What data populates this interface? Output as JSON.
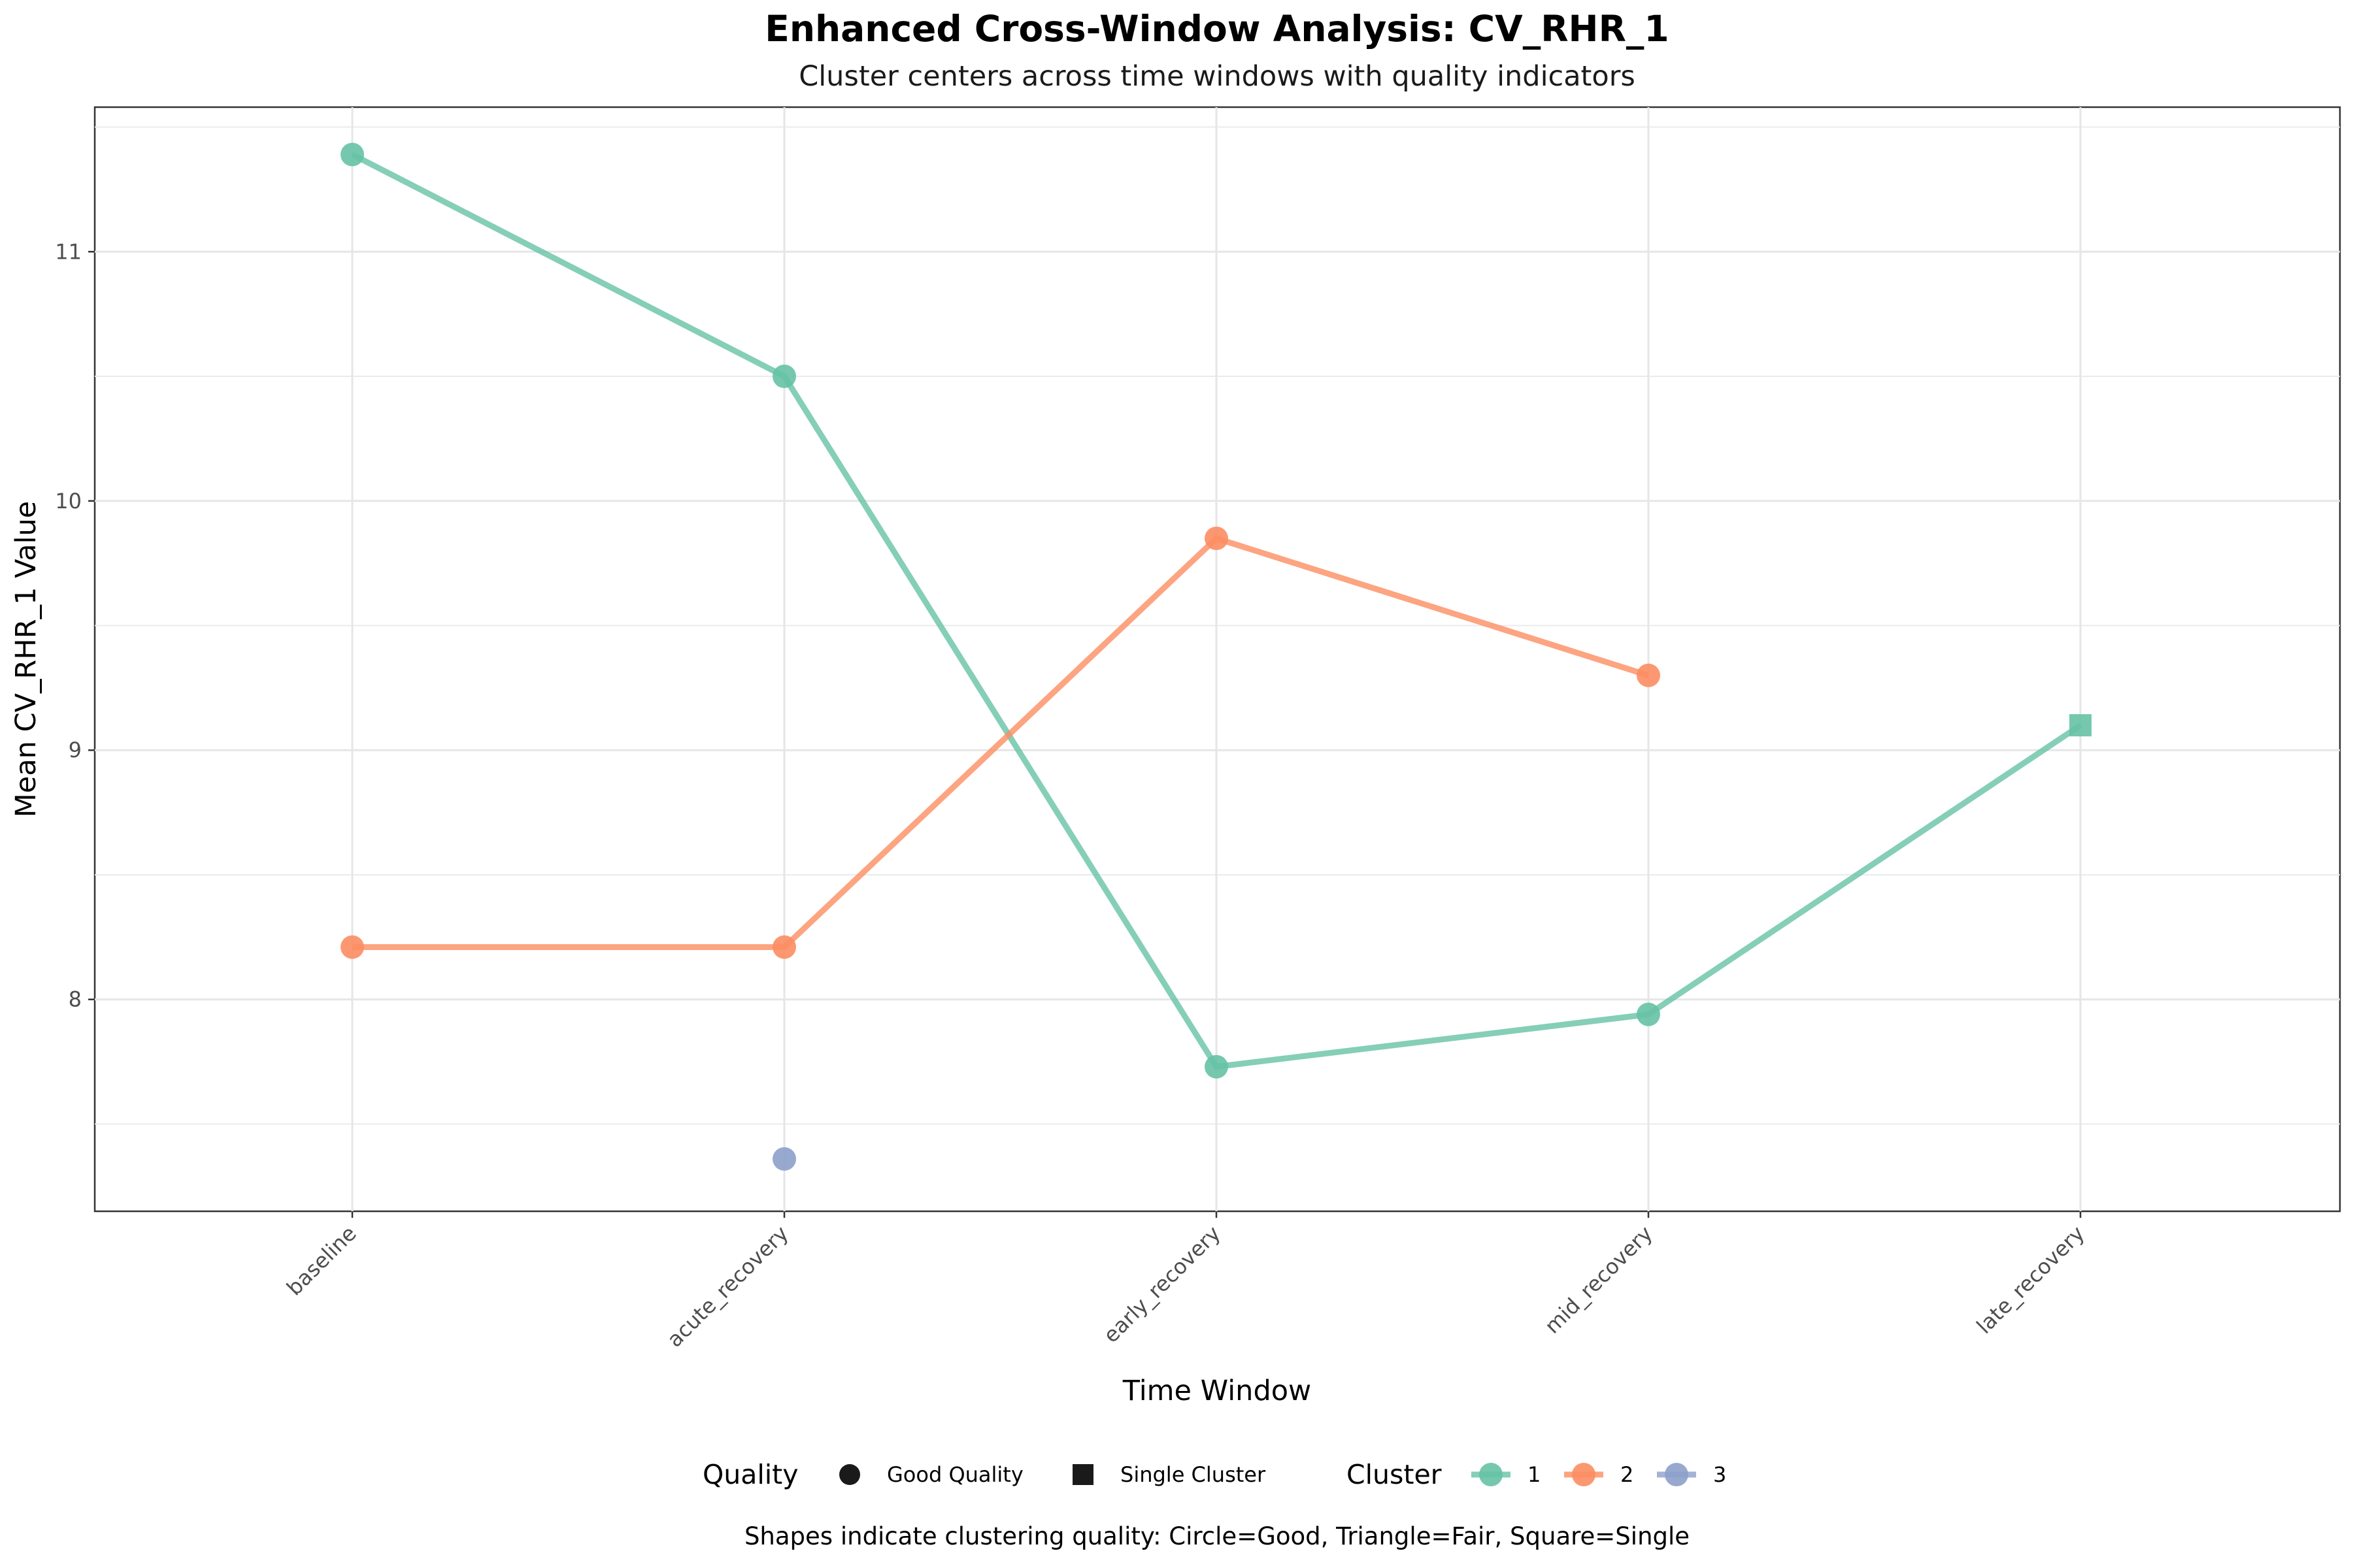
{
  "chart_data": {
    "type": "line",
    "title": "Enhanced Cross-Window Analysis: CV_RHR_1",
    "subtitle": "Cluster centers across time windows with quality indicators",
    "xlabel": "Time Window",
    "ylabel": "Mean CV_RHR_1 Value",
    "categories": [
      "baseline",
      "acute_recovery",
      "early_recovery",
      "mid_recovery",
      "late_recovery"
    ],
    "ylim": [
      7.15,
      11.58
    ],
    "yticks": [
      8,
      9,
      10,
      11
    ],
    "grid": true,
    "legend_position": "bottom",
    "series": [
      {
        "name": "1",
        "color": "#66c2a5",
        "points": [
          {
            "x": "baseline",
            "y": 11.39,
            "quality": "Good Quality"
          },
          {
            "x": "acute_recovery",
            "y": 10.5,
            "quality": "Good Quality"
          },
          {
            "x": "early_recovery",
            "y": 7.73,
            "quality": "Good Quality"
          },
          {
            "x": "mid_recovery",
            "y": 7.94,
            "quality": "Good Quality"
          },
          {
            "x": "late_recovery",
            "y": 9.1,
            "quality": "Single Cluster"
          }
        ]
      },
      {
        "name": "2",
        "color": "#fc8d62",
        "points": [
          {
            "x": "baseline",
            "y": 8.21,
            "quality": "Good Quality"
          },
          {
            "x": "acute_recovery",
            "y": 8.21,
            "quality": "Good Quality"
          },
          {
            "x": "early_recovery",
            "y": 9.85,
            "quality": "Good Quality"
          },
          {
            "x": "mid_recovery",
            "y": 9.3,
            "quality": "Good Quality"
          }
        ]
      },
      {
        "name": "3",
        "color": "#8da0cb",
        "points": [
          {
            "x": "acute_recovery",
            "y": 7.36,
            "quality": "Good Quality"
          }
        ]
      }
    ],
    "legend": {
      "quality_title": "Quality",
      "quality_items": [
        {
          "label": "Good Quality",
          "shape": "circle"
        },
        {
          "label": "Single Cluster",
          "shape": "square"
        }
      ],
      "cluster_title": "Cluster"
    },
    "caption": "Shapes indicate clustering quality: Circle=Good, Triangle=Fair, Square=Single"
  }
}
